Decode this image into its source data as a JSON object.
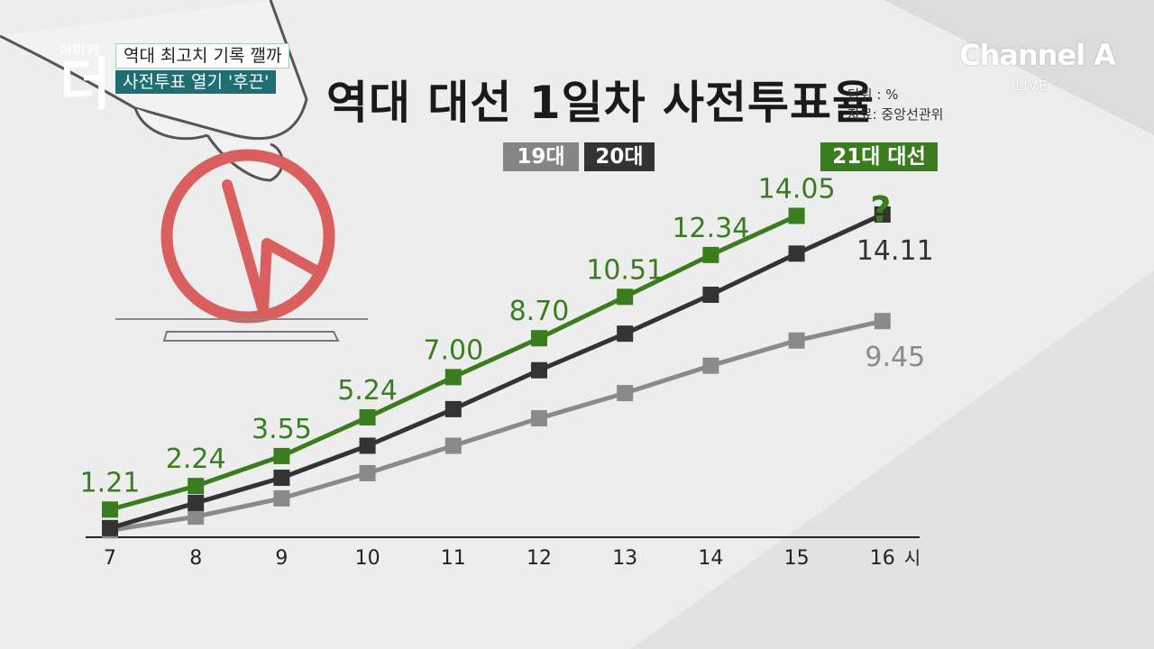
{
  "headline_tags": [
    "역대 최고치 기록 깰까",
    "사전투표 열기 '후끈'"
  ],
  "program_logo": {
    "top": "미미키",
    "big": "더"
  },
  "broadcaster": {
    "name": "Channel A",
    "live": "LIVE"
  },
  "chart_data": {
    "type": "line",
    "title": "역대 대선 1일차 사전투표율",
    "unit_note": "단위 : %",
    "source_note": "자료: 중앙선관위",
    "x": [
      "7",
      "8",
      "9",
      "10",
      "11",
      "12",
      "13",
      "14",
      "15",
      "16"
    ],
    "x_unit": "시",
    "ylim": [
      0,
      16
    ],
    "grid": false,
    "legend_position": "top-center",
    "series": [
      {
        "name": "19대",
        "color": "#8a8a8a",
        "values": [
          0.3,
          0.9,
          1.7,
          2.8,
          4.0,
          5.2,
          6.3,
          7.5,
          8.6,
          9.45
        ],
        "labels": {
          "9": "9.45"
        }
      },
      {
        "name": "20대",
        "color": "#333333",
        "values": [
          0.4,
          1.5,
          2.6,
          4.0,
          5.6,
          7.3,
          8.9,
          10.6,
          12.4,
          14.11
        ],
        "labels": {
          "9": "14.11"
        }
      },
      {
        "name": "21대 대선",
        "color": "#3a7d1e",
        "values": [
          1.21,
          2.24,
          3.55,
          5.24,
          7.0,
          8.7,
          10.51,
          12.34,
          14.05,
          null
        ],
        "labels": {
          "0": "1.21",
          "1": "2.24",
          "2": "3.55",
          "3": "5.24",
          "4": "7.00",
          "5": "8.70",
          "6": "10.51",
          "7": "12.34",
          "8": "14.05"
        }
      }
    ],
    "annotation": "?"
  }
}
